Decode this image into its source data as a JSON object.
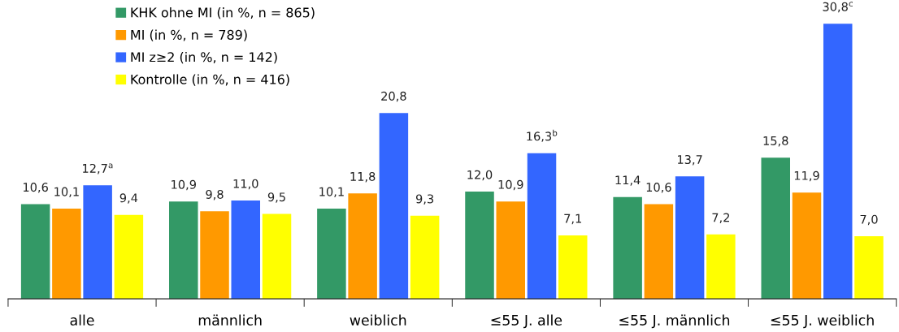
{
  "chart_data": {
    "type": "bar",
    "categories": [
      "alle",
      "männlich",
      "weiblich",
      "≤55 J. alle",
      "≤55 J. männlich",
      "≤55 J. weiblich"
    ],
    "series": [
      {
        "name": "KHK ohne MI (in %, n = 865)",
        "color": "#339966",
        "values": [
          10.6,
          10.9,
          10.1,
          12.0,
          11.4,
          15.8
        ],
        "value_labels": [
          "10,6",
          "10,9",
          "10,1",
          "12,0",
          "11,4",
          "15,8"
        ]
      },
      {
        "name": "MI (in %, n = 789)",
        "color": "#ff9900",
        "values": [
          10.1,
          9.8,
          11.8,
          10.9,
          10.6,
          11.9
        ],
        "value_labels": [
          "10,1",
          "9,8",
          "11,8",
          "10,9",
          "10,6",
          "11,9"
        ]
      },
      {
        "name": "MI z≥2 (in %, n = 142)",
        "color": "#3366ff",
        "values": [
          12.7,
          11.0,
          20.8,
          16.3,
          13.7,
          30.8
        ],
        "value_labels": [
          "12,7$^{a}$",
          "11,0",
          "20,8",
          "16,3$^{b}$",
          "13,7",
          "30,8$^{c}$"
        ]
      },
      {
        "name": "Kontrolle (in %, n = 416)",
        "color": "#ffff00",
        "values": [
          9.4,
          9.5,
          9.3,
          7.1,
          7.2,
          7.0
        ],
        "value_labels": [
          "9,4",
          "9,5",
          "9,3",
          "7,1",
          "7,2",
          "7,0"
        ]
      }
    ],
    "legend": "top left",
    "grid": false
  }
}
